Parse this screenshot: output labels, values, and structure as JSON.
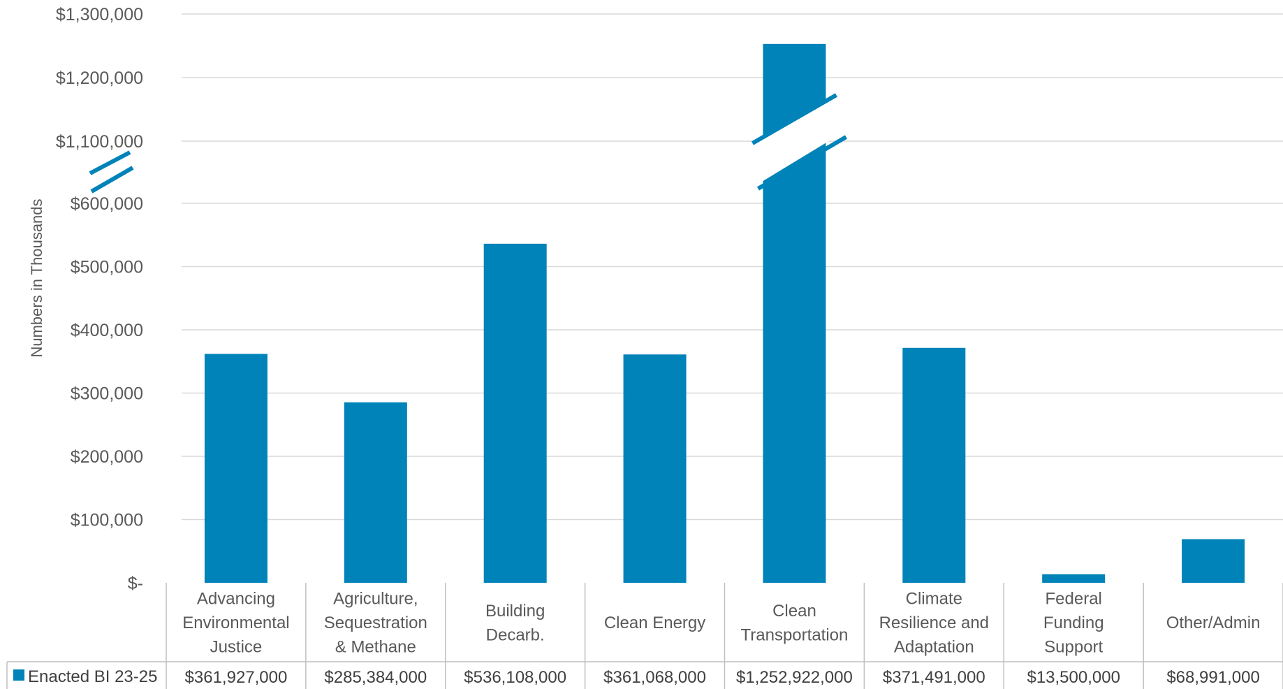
{
  "chart_data": {
    "type": "bar",
    "title": "",
    "xlabel": "",
    "ylabel": "Numbers in Thousands",
    "axis_break": {
      "from": 600000,
      "to": 1100000
    },
    "y_ticks_lower": [
      {
        "value": 0,
        "label": "$-"
      },
      {
        "value": 100000,
        "label": "$100,000"
      },
      {
        "value": 200000,
        "label": "$200,000"
      },
      {
        "value": 300000,
        "label": "$300,000"
      },
      {
        "value": 400000,
        "label": "$400,000"
      },
      {
        "value": 500000,
        "label": "$500,000"
      },
      {
        "value": 600000,
        "label": "$600,000"
      }
    ],
    "y_ticks_upper": [
      {
        "value": 1100000,
        "label": "$1,100,000"
      },
      {
        "value": 1200000,
        "label": "$1,200,000"
      },
      {
        "value": 1300000,
        "label": "$1,300,000"
      }
    ],
    "categories": [
      [
        "Advancing",
        "Environmental",
        "Justice"
      ],
      [
        "Agriculture,",
        "Sequestration",
        "& Methane"
      ],
      [
        "Building",
        "Decarb."
      ],
      [
        "Clean Energy"
      ],
      [
        "Clean",
        "Transportation"
      ],
      [
        "Climate",
        "Resilience and",
        "Adaptation"
      ],
      [
        "Federal",
        "Funding",
        "Support"
      ],
      [
        "Other/Admin"
      ]
    ],
    "series": [
      {
        "name": "Enacted BI 23-25",
        "color": "#0083B8",
        "values": [
          361927,
          285384,
          536108,
          361068,
          1252922,
          371491,
          13500,
          68991
        ],
        "table_labels": [
          "$361,927,000",
          "$285,384,000",
          "$536,108,000",
          "$361,068,000",
          "$1,252,922,000",
          "$371,491,000",
          "$13,500,000",
          "$68,991,000"
        ]
      }
    ],
    "grid": true,
    "legend": "data-table"
  }
}
